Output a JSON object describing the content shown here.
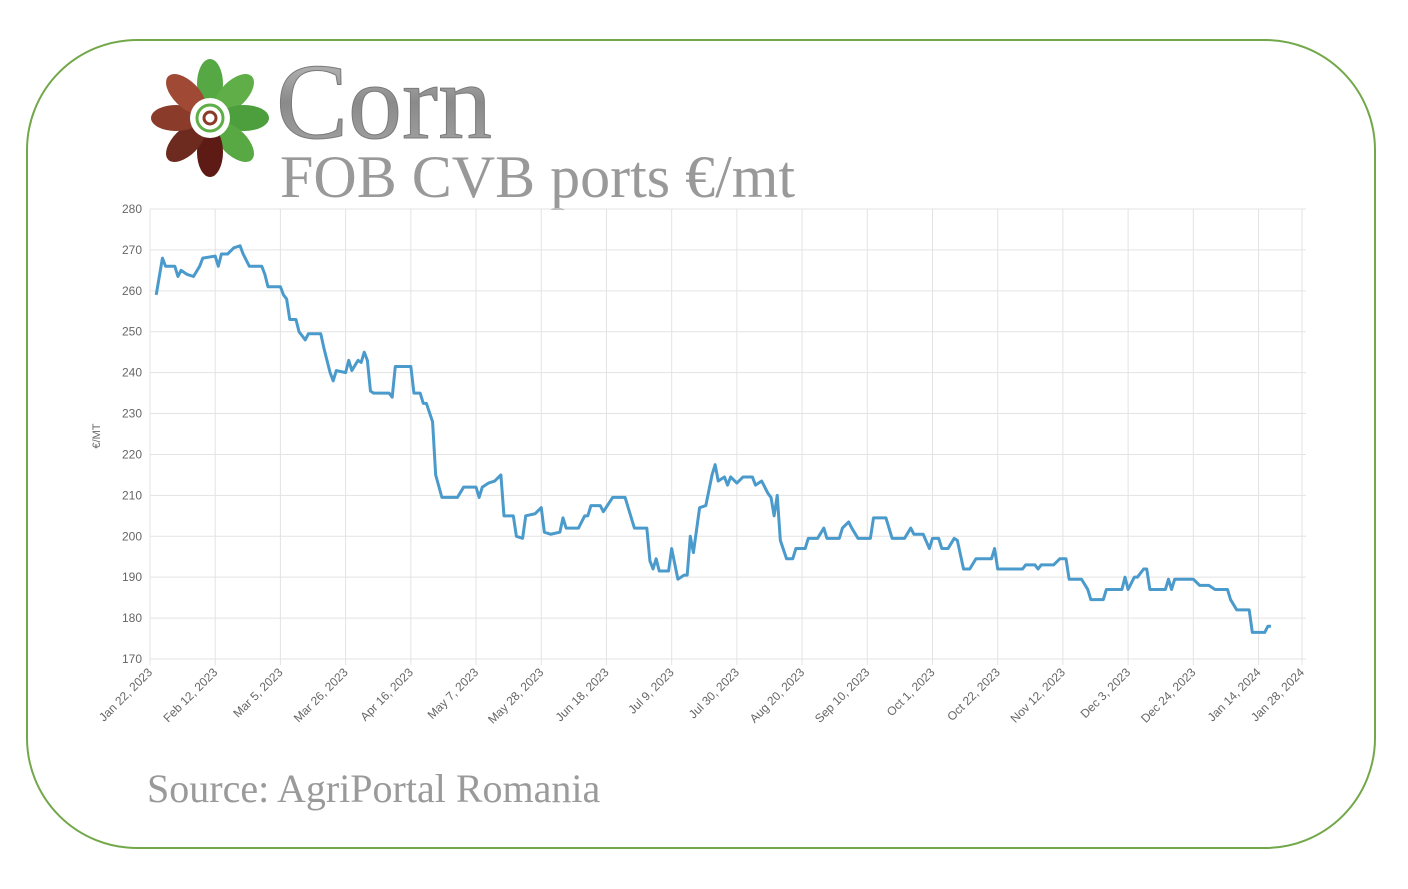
{
  "chart_data": {
    "type": "line",
    "title": "Corn",
    "subtitle": "FOB CVB ports €/mt",
    "source": "Source: AgriPortal Romania",
    "ylabel": "€/MT",
    "color": "#4a9acb",
    "grid": true,
    "xlim": [
      "2023-01-22",
      "2024-01-28"
    ],
    "xticks": [
      {
        "value": "2023-01-22",
        "label": "Jan 22, 2023"
      },
      {
        "value": "2023-02-12",
        "label": "Feb 12, 2023"
      },
      {
        "value": "2023-03-05",
        "label": "Mar 5, 2023"
      },
      {
        "value": "2023-03-26",
        "label": "Mar 26, 2023"
      },
      {
        "value": "2023-04-16",
        "label": "Apr 16, 2023"
      },
      {
        "value": "2023-05-07",
        "label": "May 7, 2023"
      },
      {
        "value": "2023-05-28",
        "label": "May 28, 2023"
      },
      {
        "value": "2023-06-18",
        "label": "Jun 18, 2023"
      },
      {
        "value": "2023-07-09",
        "label": "Jul 9, 2023"
      },
      {
        "value": "2023-07-30",
        "label": "Jul 30, 2023"
      },
      {
        "value": "2023-08-20",
        "label": "Aug 20, 2023"
      },
      {
        "value": "2023-09-10",
        "label": "Sep 10, 2023"
      },
      {
        "value": "2023-10-01",
        "label": "Oct 1, 2023"
      },
      {
        "value": "2023-10-22",
        "label": "Oct 22, 2023"
      },
      {
        "value": "2023-11-12",
        "label": "Nov 12, 2023"
      },
      {
        "value": "2023-12-03",
        "label": "Dec 3, 2023"
      },
      {
        "value": "2023-12-24",
        "label": "Dec 24, 2023"
      },
      {
        "value": "2024-01-14",
        "label": "Jan 14, 2024"
      },
      {
        "value": "2024-01-28",
        "label": "Jan 28, 2024"
      }
    ],
    "ylim": [
      170,
      280
    ],
    "yticks": [
      170,
      180,
      190,
      200,
      210,
      220,
      230,
      240,
      250,
      260,
      270,
      280
    ],
    "x": [
      "2023-01-24",
      "2023-01-26",
      "2023-01-27",
      "2023-01-30",
      "2023-01-31",
      "2023-02-01",
      "2023-02-03",
      "2023-02-05",
      "2023-02-07",
      "2023-02-08",
      "2023-02-12",
      "2023-02-13",
      "2023-02-14",
      "2023-02-16",
      "2023-02-18",
      "2023-02-20",
      "2023-02-21",
      "2023-02-23",
      "2023-02-27",
      "2023-02-28",
      "2023-03-01",
      "2023-03-05",
      "2023-03-06",
      "2023-03-07",
      "2023-03-08",
      "2023-03-10",
      "2023-03-11",
      "2023-03-13",
      "2023-03-14",
      "2023-03-18",
      "2023-03-19",
      "2023-03-21",
      "2023-03-22",
      "2023-03-23",
      "2023-03-26",
      "2023-03-27",
      "2023-03-28",
      "2023-03-30",
      "2023-03-31",
      "2023-04-01",
      "2023-04-02",
      "2023-04-03",
      "2023-04-04",
      "2023-04-09",
      "2023-04-10",
      "2023-04-11",
      "2023-04-16",
      "2023-04-17",
      "2023-04-19",
      "2023-04-20",
      "2023-04-21",
      "2023-04-23",
      "2023-04-24",
      "2023-04-26",
      "2023-05-01",
      "2023-05-03",
      "2023-05-07",
      "2023-05-08",
      "2023-05-09",
      "2023-05-11",
      "2023-05-13",
      "2023-05-15",
      "2023-05-16",
      "2023-05-19",
      "2023-05-20",
      "2023-05-22",
      "2023-05-23",
      "2023-05-26",
      "2023-05-28",
      "2023-05-29",
      "2023-05-31",
      "2023-06-03",
      "2023-06-04",
      "2023-06-05",
      "2023-06-09",
      "2023-06-11",
      "2023-06-12",
      "2023-06-13",
      "2023-06-16",
      "2023-06-17",
      "2023-06-20",
      "2023-06-24",
      "2023-06-27",
      "2023-07-01",
      "2023-07-02",
      "2023-07-03",
      "2023-07-04",
      "2023-07-05",
      "2023-07-08",
      "2023-07-09",
      "2023-07-11",
      "2023-07-13",
      "2023-07-14",
      "2023-07-15",
      "2023-07-16",
      "2023-07-18",
      "2023-07-20",
      "2023-07-22",
      "2023-07-23",
      "2023-07-24",
      "2023-07-26",
      "2023-07-27",
      "2023-07-28",
      "2023-07-30",
      "2023-08-01",
      "2023-08-04",
      "2023-08-05",
      "2023-08-07",
      "2023-08-09",
      "2023-08-10",
      "2023-08-11",
      "2023-08-12",
      "2023-08-13",
      "2023-08-15",
      "2023-08-17",
      "2023-08-18",
      "2023-08-21",
      "2023-08-22",
      "2023-08-25",
      "2023-08-27",
      "2023-08-28",
      "2023-09-01",
      "2023-09-02",
      "2023-09-04",
      "2023-09-05",
      "2023-09-07",
      "2023-09-11",
      "2023-09-12",
      "2023-09-16",
      "2023-09-18",
      "2023-09-22",
      "2023-09-24",
      "2023-09-25",
      "2023-09-28",
      "2023-09-30",
      "2023-10-01",
      "2023-10-03",
      "2023-10-04",
      "2023-10-06",
      "2023-10-08",
      "2023-10-09",
      "2023-10-10",
      "2023-10-11",
      "2023-10-13",
      "2023-10-15",
      "2023-10-20",
      "2023-10-21",
      "2023-10-22",
      "2023-10-30",
      "2023-10-31",
      "2023-11-03",
      "2023-11-04",
      "2023-11-05",
      "2023-11-09",
      "2023-11-11",
      "2023-11-13",
      "2023-11-14",
      "2023-11-18",
      "2023-11-20",
      "2023-11-21",
      "2023-11-25",
      "2023-11-26",
      "2023-12-01",
      "2023-12-02",
      "2023-12-03",
      "2023-12-05",
      "2023-12-06",
      "2023-12-08",
      "2023-12-09",
      "2023-12-10",
      "2023-12-15",
      "2023-12-16",
      "2023-12-17",
      "2023-12-18",
      "2023-12-24",
      "2023-12-26",
      "2023-12-29",
      "2023-12-31",
      "2024-01-04",
      "2024-01-05",
      "2024-01-07",
      "2024-01-11",
      "2024-01-12",
      "2024-01-16",
      "2024-01-17",
      "2024-01-18"
    ],
    "values": [
      259,
      268,
      266,
      266,
      263.5,
      265,
      264,
      263.5,
      266,
      268,
      268.5,
      266,
      269,
      269,
      270.5,
      271,
      269,
      266,
      266,
      264,
      261,
      261,
      259,
      258,
      253,
      253,
      250,
      248,
      249.5,
      249.5,
      246,
      240,
      238,
      240.5,
      240,
      243,
      240.5,
      243,
      242.5,
      245,
      243,
      235.5,
      235,
      235,
      234,
      241.5,
      241.5,
      235,
      235,
      232.5,
      232.5,
      228,
      215,
      209.5,
      209.5,
      212,
      212,
      209.5,
      212,
      213,
      213.5,
      215,
      205,
      205,
      200,
      199.5,
      205,
      205.5,
      207,
      201,
      200.5,
      201,
      204.5,
      202,
      202,
      205,
      205,
      207.5,
      207.5,
      206,
      209.5,
      209.5,
      202,
      202,
      194,
      192,
      194.5,
      191.5,
      191.5,
      197,
      189.5,
      190.5,
      190.5,
      200,
      196,
      207,
      207.5,
      215,
      217.5,
      213.5,
      214.5,
      212.5,
      214.5,
      213,
      214.5,
      214.5,
      212.5,
      213.5,
      210.5,
      209.5,
      205,
      210,
      199,
      194.5,
      194.5,
      197,
      197,
      199.5,
      199.5,
      202,
      199.5,
      199.5,
      202,
      203.5,
      202,
      199.5,
      199.5,
      204.5,
      204.5,
      199.5,
      199.5,
      202,
      200.5,
      200.5,
      197,
      199.5,
      199.5,
      197,
      197,
      199.5,
      199,
      195.5,
      192,
      192,
      194.5,
      194.5,
      197,
      192,
      192,
      193,
      193,
      192,
      193,
      193,
      194.5,
      194.5,
      189.5,
      189.5,
      187,
      184.5,
      184.5,
      187,
      187,
      190,
      187,
      190,
      190,
      192,
      192,
      187,
      187,
      189.5,
      187,
      189.5,
      189.5,
      188,
      188,
      187,
      187,
      184.5,
      182,
      182,
      176.5,
      176.5,
      178,
      178
    ]
  }
}
